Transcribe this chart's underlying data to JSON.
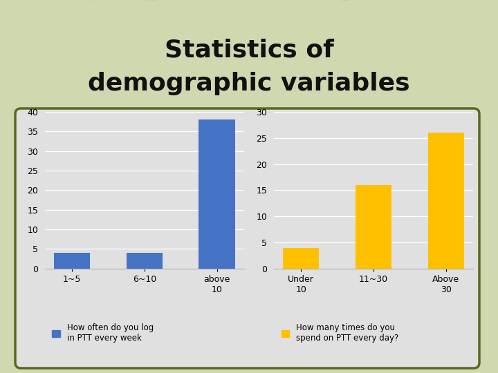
{
  "title_line1": "Statistics of",
  "title_line2": "demographic variables",
  "title_fontsize": 26,
  "title_color": "#111111",
  "bg_color": "#d0d8b0",
  "box_color": "#e0e0e0",
  "box_edge_color": "#5a6820",
  "chart1": {
    "categories": [
      "1~5",
      "6~10",
      "above\n10"
    ],
    "values": [
      4,
      4,
      38
    ],
    "bar_color": "#4472c4",
    "ylim": [
      0,
      40
    ],
    "yticks": [
      0,
      5,
      10,
      15,
      20,
      25,
      30,
      35,
      40
    ],
    "legend_label": "How often do you log\nin PTT every week"
  },
  "chart2": {
    "categories": [
      "Under\n10",
      "11~30",
      "Above\n30"
    ],
    "values": [
      4,
      16,
      26
    ],
    "bar_color": "#ffc000",
    "ylim": [
      0,
      30
    ],
    "yticks": [
      0,
      5,
      10,
      15,
      20,
      25,
      30
    ],
    "legend_label": "How many times do you\nspend on PTT every day?"
  }
}
